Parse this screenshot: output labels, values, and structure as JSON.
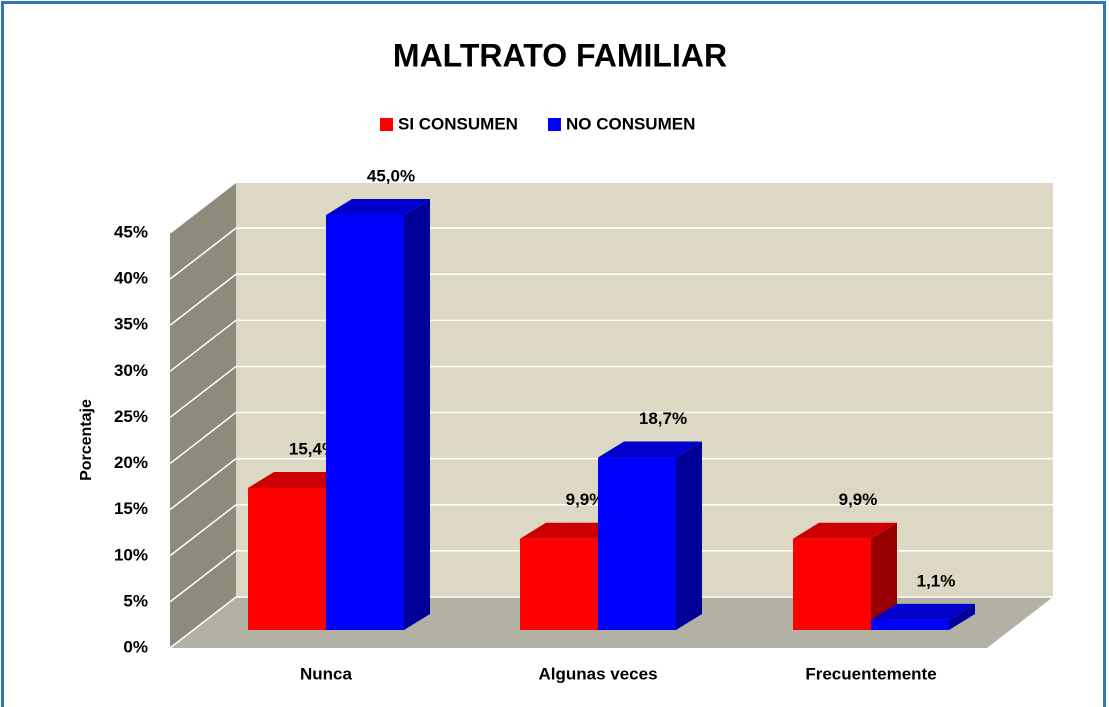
{
  "chart_data": {
    "type": "bar3d",
    "title": "MALTRATO FAMILIAR",
    "y_label": "Porcentaje",
    "categories": [
      "Nunca",
      "Algunas veces",
      "Frecuentemente"
    ],
    "series": [
      {
        "name": "SI CONSUMEN",
        "color": "#ff0000",
        "values": [
          15.4,
          9.9,
          9.9
        ],
        "value_labels": [
          "15,4%",
          "9,9%",
          "9,9%"
        ]
      },
      {
        "name": "NO CONSUMEN",
        "color": "#0000ff",
        "values": [
          45.0,
          18.7,
          1.1
        ],
        "value_labels": [
          "45,0%",
          "18,7%",
          "1,1%"
        ]
      }
    ],
    "ylim": [
      0,
      45
    ],
    "yticks": [
      {
        "value": 0,
        "label": "0%"
      },
      {
        "value": 5,
        "label": "5%"
      },
      {
        "value": 10,
        "label": "10%"
      },
      {
        "value": 15,
        "label": "15%"
      },
      {
        "value": 20,
        "label": "20%"
      },
      {
        "value": 25,
        "label": "25%"
      },
      {
        "value": 30,
        "label": "30%"
      },
      {
        "value": 35,
        "label": "35%"
      },
      {
        "value": 40,
        "label": "40%"
      },
      {
        "value": 45,
        "label": "45%"
      }
    ],
    "grid": true,
    "legend": "top"
  }
}
